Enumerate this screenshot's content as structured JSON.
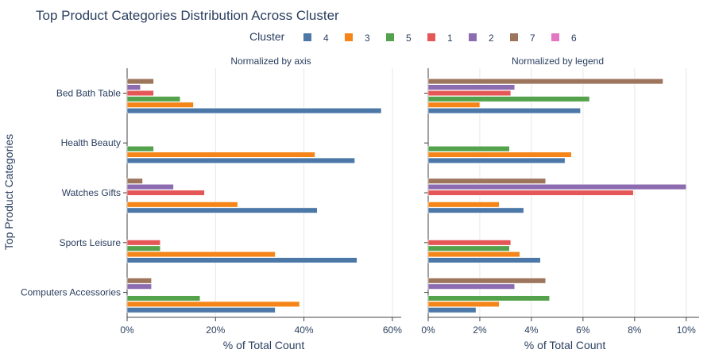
{
  "chart_data": {
    "type": "bar",
    "orientation": "horizontal",
    "title": "Top Product Categories Distribution Across Cluster",
    "ylabel": "Top Product Categories",
    "legend": {
      "title": "Cluster",
      "placement": "top-center",
      "items": [
        {
          "name": "4",
          "color": "#4c78a8"
        },
        {
          "name": "3",
          "color": "#f58518"
        },
        {
          "name": "5",
          "color": "#54a24b"
        },
        {
          "name": "1",
          "color": "#e45756"
        },
        {
          "name": "2",
          "color": "#8c6bb1"
        },
        {
          "name": "7",
          "color": "#9d755d"
        },
        {
          "name": "6",
          "color": "#e377c2"
        }
      ]
    },
    "categories": [
      "Bed Bath Table",
      "Health Beauty",
      "Watches Gifts",
      "Sports Leisure",
      "Computers Accessories"
    ],
    "panels": [
      {
        "subtitle": "Normalized by axis",
        "xlabel": "% of Total Count",
        "xlim": [
          0,
          62
        ],
        "xticks": [
          0,
          20,
          40,
          60
        ],
        "xticklabels": [
          "0%",
          "20%",
          "40%",
          "60%"
        ],
        "series": [
          {
            "name": "4",
            "values": [
              57.5,
              51.5,
              43,
              52,
              33.5
            ]
          },
          {
            "name": "3",
            "values": [
              15,
              42.5,
              25,
              33.5,
              39
            ]
          },
          {
            "name": "5",
            "values": [
              12,
              6,
              0,
              7.5,
              16.5
            ]
          },
          {
            "name": "1",
            "values": [
              6,
              0,
              17.5,
              7.5,
              0
            ]
          },
          {
            "name": "2",
            "values": [
              3,
              0,
              10.5,
              0,
              5.5
            ]
          },
          {
            "name": "7",
            "values": [
              6,
              0,
              3.5,
              0,
              5.5
            ]
          },
          {
            "name": "6",
            "values": [
              0,
              0,
              0,
              0,
              0
            ]
          }
        ]
      },
      {
        "subtitle": "Normalized by legend",
        "xlabel": "% of Total Count",
        "xlim": [
          0,
          10.5
        ],
        "xticks": [
          0,
          2,
          4,
          6,
          8,
          10
        ],
        "xticklabels": [
          "0%",
          "2%",
          "4%",
          "6%",
          "8%",
          "10%"
        ],
        "series": [
          {
            "name": "4",
            "values": [
              5.9,
              5.3,
              3.7,
              4.35,
              1.85
            ]
          },
          {
            "name": "3",
            "values": [
              2.0,
              5.55,
              2.75,
              3.55,
              2.75
            ]
          },
          {
            "name": "5",
            "values": [
              6.25,
              3.15,
              0,
              3.15,
              4.7
            ]
          },
          {
            "name": "1",
            "values": [
              3.2,
              0,
              7.95,
              3.2,
              0
            ]
          },
          {
            "name": "2",
            "values": [
              3.35,
              0,
              10.0,
              0,
              3.35
            ]
          },
          {
            "name": "7",
            "values": [
              9.1,
              0,
              4.55,
              0,
              4.55
            ]
          },
          {
            "name": "6",
            "values": [
              0,
              0,
              0,
              0,
              0
            ]
          }
        ]
      }
    ]
  }
}
